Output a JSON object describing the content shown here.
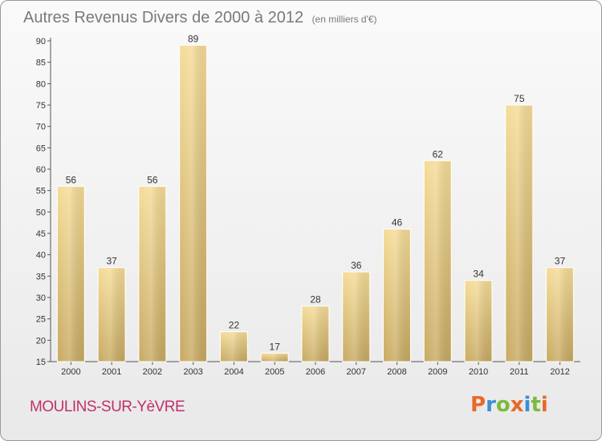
{
  "header": {
    "title": "Autres Revenus Divers de 2000 à 2012",
    "subtitle": "(en milliers d'€)"
  },
  "footer": {
    "commune": "MOULINS-SUR-YèVRE",
    "logo_text": "Proxiti",
    "logo_colors": [
      "#e8692a",
      "#3b8fd4",
      "#7cba3c",
      "#e8692a",
      "#3b8fd4",
      "#7cba3c",
      "#e8692a"
    ]
  },
  "chart_data": {
    "type": "bar",
    "title": "Autres Revenus Divers de 2000 à 2012",
    "subtitle": "(en milliers d'€)",
    "categories": [
      "2000",
      "2001",
      "2002",
      "2003",
      "2004",
      "2005",
      "2006",
      "2007",
      "2008",
      "2009",
      "2010",
      "2011",
      "2012"
    ],
    "values": [
      56,
      37,
      56,
      89,
      22,
      17,
      28,
      36,
      46,
      62,
      34,
      75,
      37
    ],
    "ylim": [
      15,
      90
    ],
    "yticks": [
      15,
      20,
      25,
      30,
      35,
      40,
      45,
      50,
      55,
      60,
      65,
      70,
      75,
      80,
      85,
      90
    ],
    "grid": false,
    "data_labels": true,
    "bar_color": "#e8c97a"
  }
}
